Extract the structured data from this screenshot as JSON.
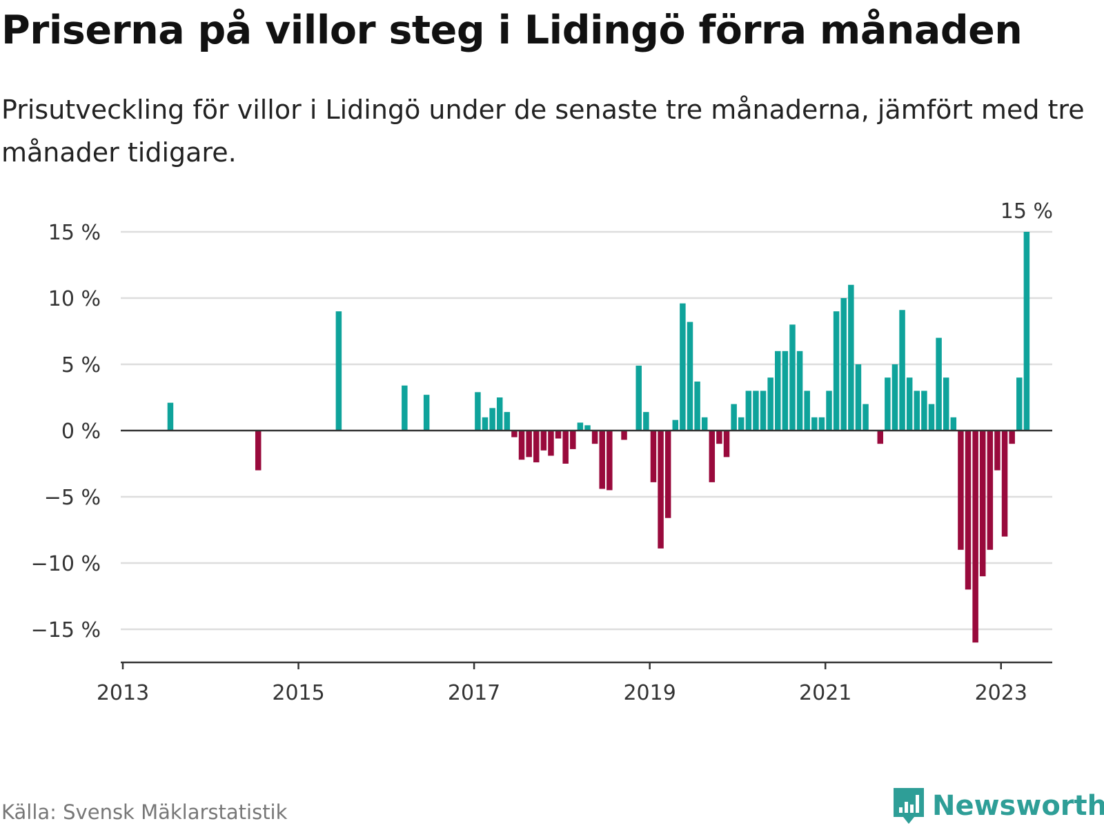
{
  "header": {
    "title": "Priserna på villor steg i Lidingö förra månaden",
    "subtitle": "Prisutveckling för villor i Lidingö under de senaste tre månaderna, jämfört med tre månader tidigare."
  },
  "footer": {
    "source": "Källa: Svensk Mäklarstatistik",
    "brand": "Newsworthy",
    "brand_icon": "newsworthy-logo-icon"
  },
  "colors": {
    "positive": "#0fa39b",
    "negative": "#990a3c",
    "brand": "#2e9e97",
    "grid": "#dddddd",
    "axis": "#333333"
  },
  "chart_data": {
    "type": "bar",
    "title": "Priserna på villor steg i Lidingö förra månaden",
    "xlabel": "",
    "ylabel": "",
    "ylim": [
      -17.5,
      15
    ],
    "yticks": [
      15,
      10,
      5,
      0,
      -5,
      -10,
      -15
    ],
    "ytick_labels": [
      "15 %",
      "10 %",
      "5 %",
      "0 %",
      "−5 %",
      "−10 %",
      "−15 %"
    ],
    "x_start": {
      "year": 2013,
      "month": 1
    },
    "x_end_months": 127,
    "xticks": [
      "2013",
      "2015",
      "2017",
      "2019",
      "2021",
      "2023"
    ],
    "annotation": {
      "label": "15 %",
      "at_index": 123
    },
    "unit": "%",
    "values": [
      null,
      null,
      null,
      null,
      null,
      null,
      2.1,
      null,
      null,
      null,
      null,
      null,
      null,
      null,
      null,
      null,
      null,
      null,
      -3.0,
      null,
      null,
      null,
      null,
      null,
      null,
      null,
      null,
      null,
      null,
      9.0,
      null,
      null,
      null,
      null,
      null,
      null,
      null,
      null,
      3.4,
      null,
      null,
      2.7,
      null,
      null,
      null,
      null,
      null,
      null,
      2.9,
      1.0,
      1.7,
      2.5,
      1.4,
      -0.5,
      -2.2,
      -2.0,
      -2.4,
      -1.5,
      -1.9,
      -0.6,
      -2.5,
      -1.4,
      0.6,
      0.4,
      -1.0,
      -4.4,
      -4.5,
      null,
      -0.7,
      null,
      4.9,
      1.4,
      -3.9,
      -8.9,
      -6.6,
      0.8,
      9.6,
      8.2,
      3.7,
      1.0,
      -3.9,
      -1.0,
      -2.0,
      2.0,
      1.0,
      3.0,
      3.0,
      3.0,
      4.0,
      6.0,
      6.0,
      8.0,
      6.0,
      3.0,
      1.0,
      1.0,
      3.0,
      9.0,
      10.0,
      11.0,
      5.0,
      2.0,
      null,
      -1.0,
      4.0,
      5.0,
      9.1,
      4.0,
      3.0,
      3.0,
      2.0,
      7.0,
      4.0,
      1.0,
      -9.0,
      -12.0,
      -16.0,
      -11.0,
      -9.0,
      -3.0,
      -8.0,
      -1.0,
      4.0,
      15.0
    ]
  }
}
